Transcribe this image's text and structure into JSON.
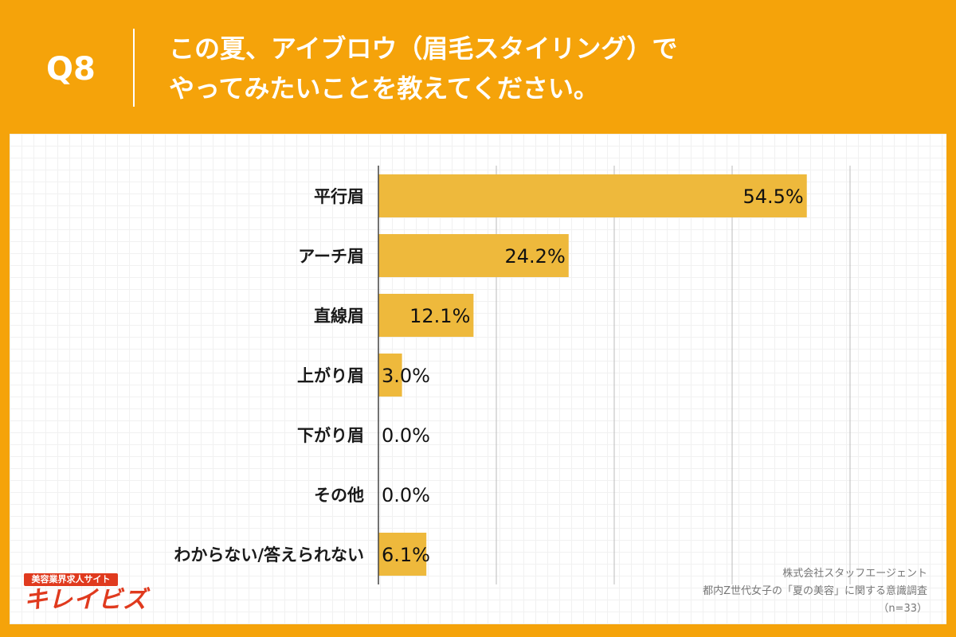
{
  "header": {
    "q_number": "Q8",
    "title_line1": "この夏、アイブロウ（眉毛スタイリング）で",
    "title_line2": "やってみたいことを教えてください。"
  },
  "logo": {
    "tagline": "美容業界求人サイト",
    "name": "キレイビズ"
  },
  "source": {
    "line1": "株式会社スタッフエージェント",
    "line2": "都内Z世代女子の「夏の美容」に関する意識調査",
    "line3": "（n=33）"
  },
  "colors": {
    "background": "#f5a30a",
    "bar": "#eeb93c",
    "gridline": "#bbbbbb"
  },
  "chart_data": {
    "type": "bar",
    "orientation": "horizontal",
    "categories": [
      "平行眉",
      "アーチ眉",
      "直線眉",
      "上がり眉",
      "下がり眉",
      "その他",
      "わからない/答えられない"
    ],
    "values": [
      54.5,
      24.2,
      12.1,
      3.0,
      0.0,
      0.0,
      6.1
    ],
    "data_labels": [
      "54.5%",
      "24.2%",
      "12.1%",
      "3.0%",
      "0.0%",
      "0.0%",
      "6.1%"
    ],
    "unit": "%",
    "xlim": [
      0,
      60
    ],
    "grid": true
  }
}
